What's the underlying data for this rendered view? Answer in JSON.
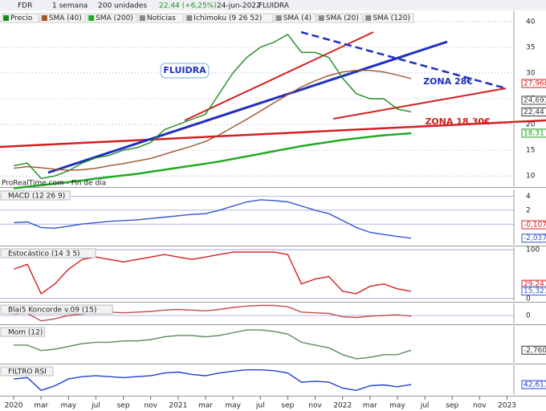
{
  "toolbar": {
    "symbol": "FDR",
    "period": "1 semana",
    "units": "200 unidades",
    "price": "22,44 (+6,25%)",
    "date": "24-jun-2022",
    "name": "FLUIDRA"
  },
  "chart_data": [
    {
      "type": "line",
      "legend": [
        "Noticias",
        "Ichimoku (9 26 52)",
        "SMA (4)",
        "SMA (20)",
        "SMA (120)"
      ],
      "annotations": [
        "FLUIDRA",
        "ZONA 28€",
        "ZONA 18,30€",
        "ProRealTime.com - Fin de día"
      ],
      "x": [
        0,
        1,
        2,
        3,
        4,
        5,
        6,
        7,
        8,
        9,
        10,
        11,
        12,
        13,
        14,
        15,
        16,
        17,
        18,
        19,
        20,
        21,
        22,
        23,
        24,
        25,
        26,
        27,
        28,
        29
      ],
      "xlim": [
        -1,
        36.5
      ],
      "ylim": [
        8,
        42
      ],
      "yticks": [
        40,
        35,
        30,
        25,
        20,
        15,
        10
      ],
      "series": [
        {
          "name": "Precio",
          "color": "#1f8a1f",
          "values": [
            12,
            12.5,
            9.5,
            10,
            11,
            12.5,
            13.5,
            14,
            15,
            15.5,
            16.5,
            19,
            20,
            21,
            22,
            26,
            30,
            33,
            35,
            36,
            37.5,
            34,
            34,
            33,
            29,
            26,
            25,
            25,
            23,
            22.44
          ]
        },
        {
          "name": "SMA (40)",
          "color": "#a0522d",
          "values": [
            11.5,
            11.8,
            11.6,
            11.3,
            11.1,
            11.2,
            11.5,
            12,
            12.4,
            12.9,
            13.4,
            14.2,
            15,
            15.8,
            16.7,
            18,
            19.5,
            21,
            22.6,
            24.2,
            25.8,
            27.3,
            28.5,
            29.5,
            30.2,
            30.5,
            30.5,
            30.2,
            29.6,
            28.9
          ]
        },
        {
          "name": "SMA (200)",
          "color": "#22aa22",
          "values": [
            7.6,
            7.9,
            8.2,
            8.5,
            8.8,
            9.1,
            9.5,
            9.8,
            10.1,
            10.4,
            10.8,
            11.2,
            11.6,
            12,
            12.4,
            12.8,
            13.3,
            13.8,
            14.3,
            14.8,
            15.3,
            15.8,
            16.2,
            16.6,
            17,
            17.3,
            17.6,
            17.9,
            18.1,
            18.3
          ]
        }
      ],
      "price_labels": [
        {
          "value": 27.968,
          "label": "27,968",
          "color": "#d42020"
        },
        {
          "value": 24.693,
          "label": "24,693",
          "color": "#444444"
        },
        {
          "value": 22.44,
          "label": "22,44",
          "color": "#333333"
        },
        {
          "value": 18.31,
          "label": "18,31",
          "color": "#1a9a1a"
        }
      ]
    },
    {
      "type": "line",
      "title": "MACD (12 26 9)",
      "x": [
        0,
        1,
        2,
        3,
        4,
        5,
        6,
        7,
        8,
        9,
        10,
        11,
        12,
        13,
        14,
        15,
        16,
        17,
        18,
        19,
        20,
        21,
        22,
        23,
        24,
        25,
        26,
        27,
        28,
        29
      ],
      "xlim": [
        -1,
        36.5
      ],
      "ylim": [
        -3,
        5
      ],
      "yticks": [
        4,
        2,
        0
      ],
      "series": [
        {
          "name": "MACD",
          "color": "#3355cc",
          "values": [
            0.2,
            0.3,
            -0.5,
            -0.6,
            -0.3,
            0,
            0.2,
            0.4,
            0.5,
            0.6,
            0.8,
            1,
            1.2,
            1.4,
            1.5,
            2,
            2.6,
            3.2,
            3.5,
            3.4,
            3.2,
            2.6,
            2,
            1.5,
            0.5,
            -0.5,
            -1.2,
            -1.5,
            -1.8,
            -2.04
          ]
        }
      ],
      "price_labels": [
        {
          "value": -0.1071,
          "label": "-0,1071",
          "color": "#d42020"
        },
        {
          "value": -2.0372,
          "label": "-2,0372",
          "color": "#3355cc"
        }
      ]
    },
    {
      "type": "line",
      "title": "Estocástico (14 3 5)",
      "x": [
        0,
        1,
        2,
        3,
        4,
        5,
        6,
        7,
        8,
        9,
        10,
        11,
        12,
        13,
        14,
        15,
        16,
        17,
        18,
        19,
        20,
        21,
        22,
        23,
        24,
        25,
        26,
        27,
        28,
        29
      ],
      "xlim": [
        -1,
        36.5
      ],
      "ylim": [
        -5,
        105
      ],
      "yticks": [
        100,
        0
      ],
      "series": [
        {
          "name": "Estocástico",
          "color": "#d42020",
          "values": [
            60,
            70,
            10,
            30,
            60,
            80,
            85,
            80,
            75,
            80,
            85,
            90,
            85,
            80,
            85,
            90,
            95,
            95,
            95,
            95,
            90,
            30,
            40,
            45,
            15,
            10,
            25,
            30,
            20,
            15
          ]
        }
      ],
      "price_labels": [
        {
          "value": 29.241,
          "label": "29,241",
          "color": "#d42020"
        },
        {
          "value": 15.321,
          "label": "15,321",
          "color": "#3355cc"
        }
      ]
    },
    {
      "type": "line",
      "title": "Blai5 Koncorde v.09 (15)",
      "x": [
        0,
        1,
        2,
        3,
        4,
        5,
        6,
        7,
        8,
        9,
        10,
        11,
        12,
        13,
        14,
        15,
        16,
        17,
        18,
        19,
        20,
        21,
        22,
        23,
        24,
        25,
        26,
        27,
        28,
        29
      ],
      "xlim": [
        -1,
        36.5
      ],
      "ylim": [
        -12,
        18
      ],
      "yticks": [
        0
      ],
      "series": [
        {
          "name": "Koncorde",
          "color": "#c0504d",
          "values": [
            2,
            3,
            -8,
            -5,
            0,
            2,
            4,
            5,
            4,
            5,
            6,
            8,
            9,
            8,
            7,
            9,
            12,
            14,
            15,
            15,
            13,
            5,
            4,
            3,
            -2,
            -3,
            -1,
            0,
            1,
            -1
          ]
        }
      ]
    },
    {
      "type": "line",
      "title": "Mom (12)",
      "x": [
        0,
        1,
        2,
        3,
        4,
        5,
        6,
        7,
        8,
        9,
        10,
        11,
        12,
        13,
        14,
        15,
        16,
        17,
        18,
        19,
        20,
        21,
        22,
        23,
        24,
        25,
        26,
        27,
        28,
        29
      ],
      "xlim": [
        -1,
        36.5
      ],
      "ylim": [
        -12,
        15
      ],
      "series": [
        {
          "name": "Mom",
          "color": "#5a8a5a",
          "values": [
            1,
            1,
            -3,
            -2,
            0,
            2,
            3,
            3,
            4,
            4,
            5,
            7,
            8,
            8,
            7,
            8,
            10,
            12,
            12,
            11,
            9,
            3,
            1,
            -1,
            -6,
            -9,
            -8,
            -6,
            -6,
            -2.76
          ]
        }
      ],
      "price_labels": [
        {
          "value": -2.76,
          "label": "-2,7600",
          "color": "#333333"
        }
      ]
    },
    {
      "type": "line",
      "title": "FILTRO RSI",
      "x": [
        0,
        1,
        2,
        3,
        4,
        5,
        6,
        7,
        8,
        9,
        10,
        11,
        12,
        13,
        14,
        15,
        16,
        17,
        18,
        19,
        20,
        21,
        22,
        23,
        24,
        25,
        26,
        27,
        28,
        29
      ],
      "xlim": [
        -1,
        36.5
      ],
      "ylim": [
        20,
        85
      ],
      "series": [
        {
          "name": "RSI",
          "color": "#2040d0",
          "values": [
            55,
            58,
            30,
            40,
            55,
            60,
            62,
            60,
            58,
            60,
            62,
            68,
            70,
            65,
            62,
            68,
            72,
            75,
            75,
            73,
            68,
            48,
            50,
            48,
            35,
            30,
            40,
            42,
            38,
            42.6
          ]
        }
      ],
      "price_labels": [
        {
          "value": 42.613,
          "label": "42,613",
          "color": "#2040d0"
        }
      ],
      "xticks": [
        {
          "value": 0,
          "label": "2020"
        },
        {
          "value": 2,
          "label": "mar"
        },
        {
          "value": 4,
          "label": "may"
        },
        {
          "value": 6,
          "label": "jul"
        },
        {
          "value": 8,
          "label": "sep"
        },
        {
          "value": 10,
          "label": "nov"
        },
        {
          "value": 12,
          "label": "2021"
        },
        {
          "value": 14,
          "label": "mar"
        },
        {
          "value": 16,
          "label": "may"
        },
        {
          "value": 18,
          "label": "jul"
        },
        {
          "value": 20,
          "label": "sep"
        },
        {
          "value": 22,
          "label": "nov"
        },
        {
          "value": 24,
          "label": "2022"
        },
        {
          "value": 26,
          "label": "mar"
        },
        {
          "value": 28,
          "label": "may"
        },
        {
          "value": 30,
          "label": "jul"
        },
        {
          "value": 32,
          "label": "sep"
        },
        {
          "value": 34,
          "label": "nov"
        },
        {
          "value": 36,
          "label": "2023"
        }
      ]
    }
  ]
}
